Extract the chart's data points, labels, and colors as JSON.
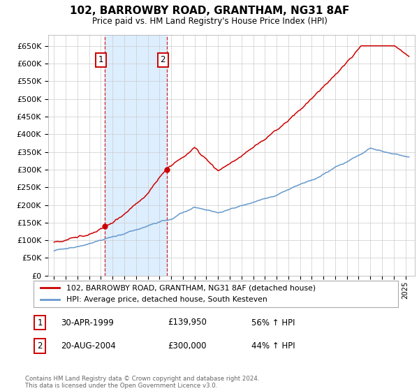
{
  "title": "102, BARROWBY ROAD, GRANTHAM, NG31 8AF",
  "subtitle": "Price paid vs. HM Land Registry's House Price Index (HPI)",
  "red_label": "102, BARROWBY ROAD, GRANTHAM, NG31 8AF (detached house)",
  "blue_label": "HPI: Average price, detached house, South Kesteven",
  "footnote": "Contains HM Land Registry data © Crown copyright and database right 2024.\nThis data is licensed under the Open Government Licence v3.0.",
  "sale1_date": "30-APR-1999",
  "sale1_price": "£139,950",
  "sale1_hpi": "56% ↑ HPI",
  "sale2_date": "20-AUG-2004",
  "sale2_price": "£300,000",
  "sale2_hpi": "44% ↑ HPI",
  "ylim": [
    0,
    680000
  ],
  "yticks": [
    0,
    50000,
    100000,
    150000,
    200000,
    250000,
    300000,
    350000,
    400000,
    450000,
    500000,
    550000,
    600000,
    650000
  ],
  "sale1_x": 1999.33,
  "sale2_x": 2004.64,
  "red_color": "#cc0000",
  "blue_color": "#6699cc",
  "grid_color": "#cccccc",
  "bg_color": "#ffffff",
  "sale_dot_color": "#cc0000",
  "highlight_color": "#ddeeff"
}
